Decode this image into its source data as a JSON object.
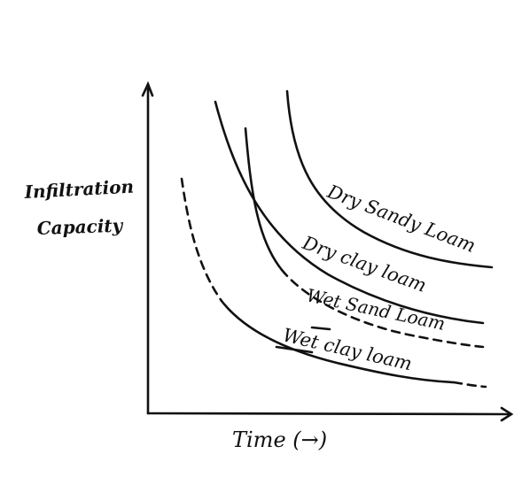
{
  "diagram": {
    "y_axis_label_line1": "Infiltration",
    "y_axis_label_line2": "Capacity",
    "x_axis_label": "Time (→)",
    "curves": [
      {
        "label": "Dry Sandy Loam",
        "style": "solid"
      },
      {
        "label": "Dry clay loam",
        "style": "solid"
      },
      {
        "label": "Wet Sand Loam",
        "style": "solid-then-dashed"
      },
      {
        "label": "Wet clay loam",
        "style": "dashed-then-solid"
      }
    ],
    "ink_color": "#111111"
  }
}
